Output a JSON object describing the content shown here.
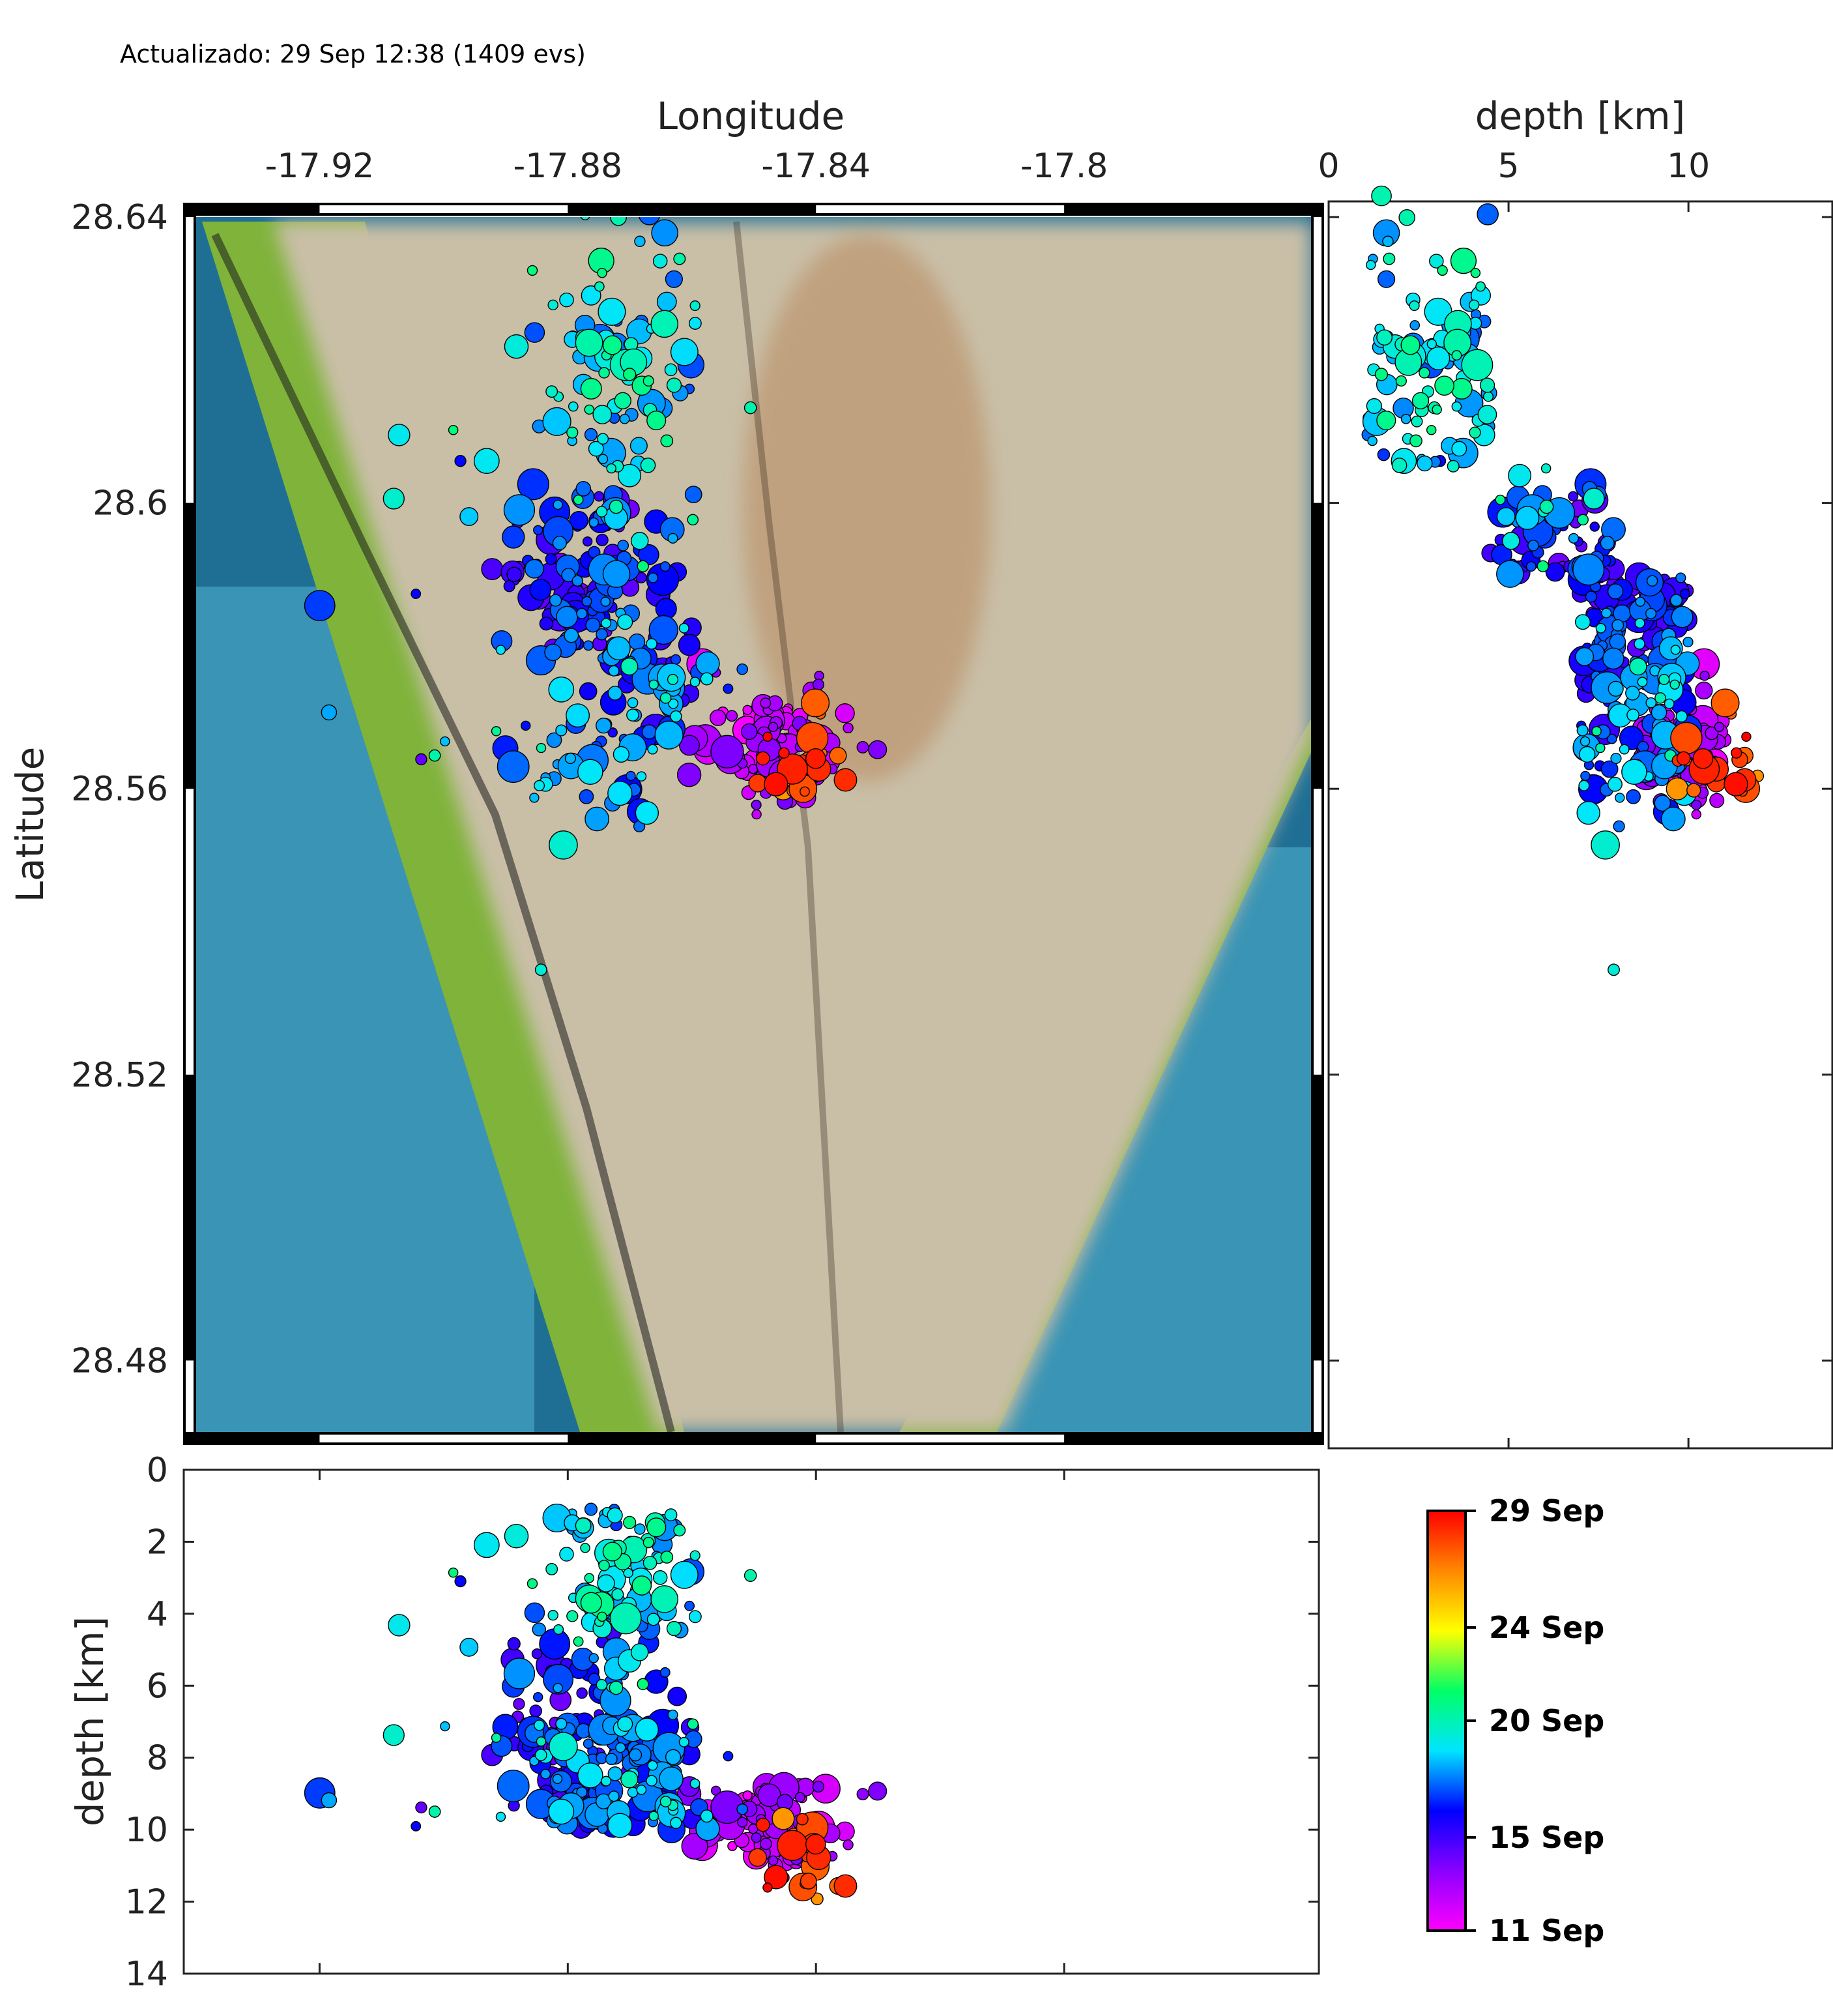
{
  "header": {
    "updated_text": "Actualizado: 29 Sep 12:38 (1409 evs)"
  },
  "colors": {
    "sea_deep": "#1f6f95",
    "sea_light": "#4fb3cf",
    "coast_green": "#7fb33a",
    "land": "#c9bfa7",
    "ridge": "#b98a5f",
    "frame": "#000000",
    "rainbow": [
      "#ff00ff",
      "#8a00ff",
      "#0000ff",
      "#00e5ff",
      "#00ff66",
      "#ffff00",
      "#ff8800",
      "#ff0000"
    ]
  },
  "chart_data": [
    {
      "name": "map",
      "type": "scatter",
      "xlabel": "Longitude",
      "ylabel": "Latitude",
      "xlim": [
        -17.94,
        -17.76
      ],
      "ylim": [
        28.47,
        28.64
      ],
      "xticks": [
        -17.92,
        -17.88,
        -17.84,
        -17.8
      ],
      "xtick_labels": [
        "-17.92",
        "-17.88",
        "-17.84",
        "-17.8"
      ],
      "yticks": [
        28.48,
        28.52,
        28.56,
        28.6,
        28.64
      ],
      "ytick_labels": [
        "28.48",
        "28.52",
        "28.56",
        "28.6",
        "28.64"
      ],
      "clusters": [
        {
          "lon": -17.872,
          "lat": 28.618,
          "sd_lon": 0.006,
          "sd_lat": 0.012,
          "n": 110,
          "day_from": 17,
          "day_to": 21
        },
        {
          "lon": -17.878,
          "lat": 28.588,
          "sd_lon": 0.007,
          "sd_lat": 0.006,
          "n": 120,
          "day_from": 14,
          "day_to": 18
        },
        {
          "lon": -17.866,
          "lat": 28.574,
          "sd_lon": 0.006,
          "sd_lat": 0.005,
          "n": 60,
          "day_from": 15,
          "day_to": 20
        },
        {
          "lon": -17.846,
          "lat": 28.566,
          "sd_lon": 0.006,
          "sd_lat": 0.004,
          "n": 90,
          "day_from": 11,
          "day_to": 14
        },
        {
          "lon": -17.841,
          "lat": 28.564,
          "sd_lon": 0.004,
          "sd_lat": 0.003,
          "n": 25,
          "day_from": 26,
          "day_to": 29
        },
        {
          "lon": -17.877,
          "lat": 28.562,
          "sd_lon": 0.006,
          "sd_lat": 0.004,
          "n": 40,
          "day_from": 16,
          "day_to": 19
        },
        {
          "lon": -17.895,
          "lat": 28.583,
          "sd_lon": 0.012,
          "sd_lat": 0.02,
          "n": 25,
          "day_from": 14,
          "day_to": 21
        }
      ]
    },
    {
      "name": "depth-vs-latitude",
      "type": "scatter",
      "xlabel": "depth [km]",
      "ylabel": "",
      "xlim": [
        0,
        14
      ],
      "ylim": [
        28.47,
        28.64
      ],
      "xticks": [
        0,
        5,
        10
      ],
      "xtick_labels": [
        "0",
        "5",
        "10"
      ]
    },
    {
      "name": "longitude-vs-depth",
      "type": "scatter",
      "xlabel": "",
      "ylabel": "depth [km]",
      "xlim": [
        -17.94,
        -17.76
      ],
      "ylim": [
        0,
        14
      ],
      "yticks": [
        0,
        2,
        4,
        6,
        8,
        10,
        12,
        14
      ],
      "ytick_labels": [
        "0",
        "2",
        "4",
        "6",
        "8",
        "10",
        "12",
        "14"
      ]
    },
    {
      "name": "colorbar",
      "type": "heatmap",
      "range_days": [
        11,
        29
      ],
      "ticks": [
        {
          "day": 29,
          "label": "29 Sep"
        },
        {
          "day": 24,
          "label": "24 Sep"
        },
        {
          "day": 20,
          "label": "20 Sep"
        },
        {
          "day": 15,
          "label": "15 Sep"
        },
        {
          "day": 11,
          "label": "11 Sep"
        }
      ]
    }
  ]
}
